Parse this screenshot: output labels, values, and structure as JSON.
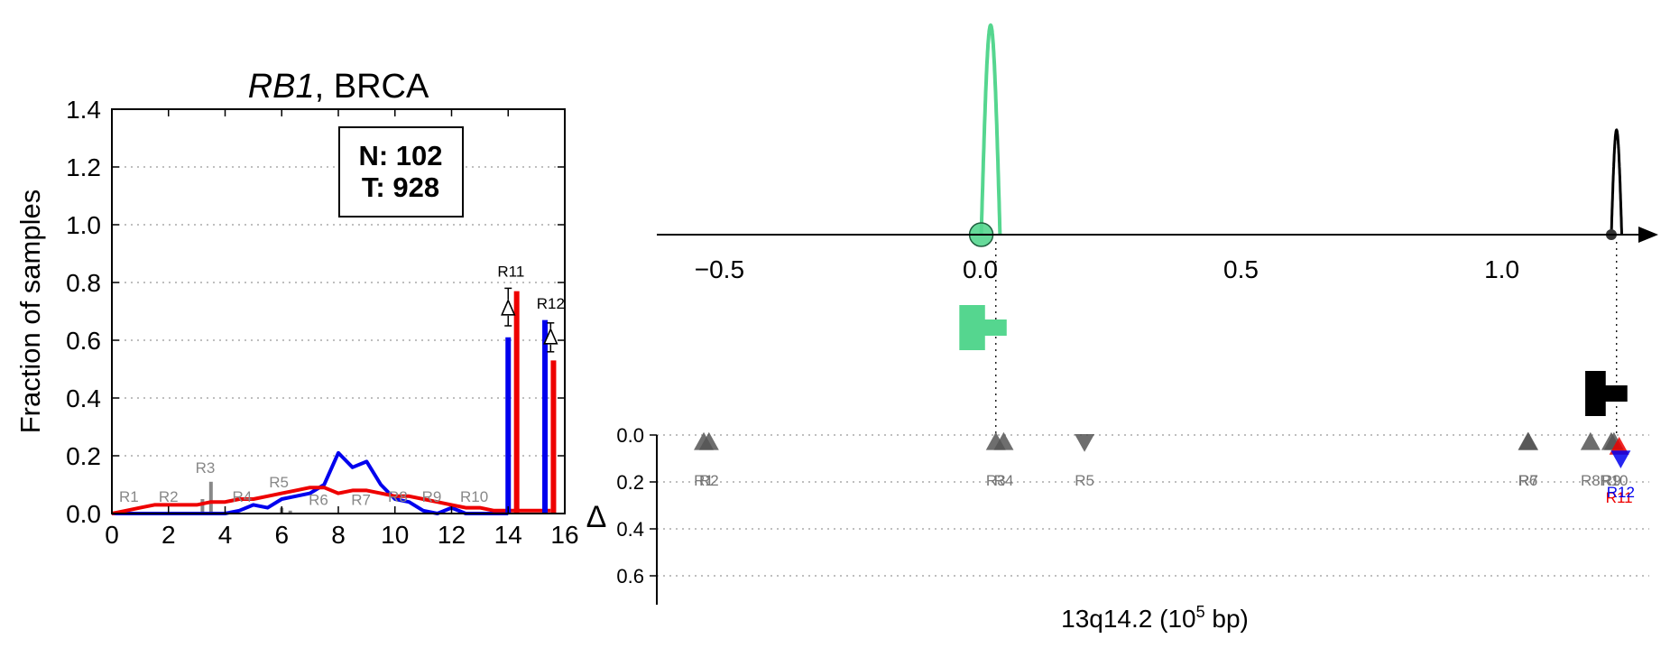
{
  "chart_data": [
    {
      "type": "line",
      "title_gene": "RB1",
      "title_rest": ", BRCA",
      "xlabel": "",
      "ylabel": "Fraction of samples",
      "xlim": [
        0,
        16
      ],
      "ylim": [
        0,
        1.4
      ],
      "x_ticks": [
        "0",
        "2",
        "4",
        "6",
        "8",
        "10",
        "12",
        "14",
        "16"
      ],
      "y_ticks": [
        "0.0",
        "0.2",
        "0.4",
        "0.6",
        "0.8",
        "1.0",
        "1.2",
        "1.4"
      ],
      "grid": "horizontal dotted",
      "counts": {
        "n_label": "N: 102",
        "t_label": "T: 928"
      },
      "series": [
        {
          "color": "#0000ee",
          "x": [
            0,
            1,
            2,
            3,
            4,
            4.5,
            5,
            5.5,
            6,
            6.5,
            7,
            7.5,
            8,
            8.5,
            9,
            9.5,
            10,
            10.5,
            11,
            11.5,
            12,
            12.5,
            13,
            13.5,
            14
          ],
          "values": [
            0,
            0,
            0,
            0,
            0,
            0.01,
            0.03,
            0.02,
            0.05,
            0.06,
            0.07,
            0.1,
            0.21,
            0.16,
            0.18,
            0.1,
            0.05,
            0.04,
            0.01,
            0,
            0.02,
            0,
            0,
            0,
            0
          ]
        },
        {
          "color": "#ee0000",
          "x": [
            0,
            0.5,
            1,
            1.5,
            2,
            2.5,
            3,
            3.5,
            4,
            4.5,
            5,
            5.5,
            6,
            6.5,
            7,
            7.5,
            8,
            8.5,
            9,
            9.5,
            10,
            10.5,
            11,
            11.5,
            12,
            12.5,
            13,
            13.5,
            14,
            14.5,
            15,
            15.5
          ],
          "values": [
            0,
            0.01,
            0.02,
            0.03,
            0.03,
            0.03,
            0.03,
            0.04,
            0.04,
            0.05,
            0.05,
            0.06,
            0.07,
            0.08,
            0.09,
            0.09,
            0.07,
            0.08,
            0.08,
            0.07,
            0.06,
            0.06,
            0.05,
            0.04,
            0.03,
            0.02,
            0.02,
            0.01,
            0.01,
            0.01,
            0.01,
            0.01
          ]
        }
      ],
      "gray_bars": [
        {
          "x": 3.2,
          "value": 0.05
        },
        {
          "x": 3.5,
          "value": 0.11
        },
        {
          "x": 6.0,
          "value": 0.02
        },
        {
          "x": 6.3,
          "value": 0.01
        }
      ],
      "colored_bars": [
        {
          "x": 14.0,
          "value": 0.61,
          "color": "#0000ee"
        },
        {
          "x": 14.3,
          "value": 0.77,
          "color": "#ee0000"
        },
        {
          "x": 15.3,
          "value": 0.67,
          "color": "#0000ee"
        },
        {
          "x": 15.6,
          "value": 0.53,
          "color": "#ee0000"
        }
      ],
      "delta_markers": [
        {
          "x": 14.0,
          "value": 0.71,
          "err": [
            0.65,
            0.78
          ]
        },
        {
          "x": 15.5,
          "value": 0.61,
          "err": [
            0.56,
            0.66
          ]
        }
      ],
      "region_labels": [
        {
          "text": "R1",
          "x": 0.6,
          "y": 0.04,
          "color": "#888888"
        },
        {
          "text": "R2",
          "x": 2.0,
          "y": 0.04,
          "color": "#888888"
        },
        {
          "text": "R3",
          "x": 3.3,
          "y": 0.14,
          "color": "#888888"
        },
        {
          "text": "R4",
          "x": 4.6,
          "y": 0.04,
          "color": "#888888"
        },
        {
          "text": "R5",
          "x": 5.9,
          "y": 0.09,
          "color": "#888888"
        },
        {
          "text": "R6",
          "x": 7.3,
          "y": 0.03,
          "color": "#888888"
        },
        {
          "text": "R7",
          "x": 8.8,
          "y": 0.03,
          "color": "#888888"
        },
        {
          "text": "R8",
          "x": 10.1,
          "y": 0.04,
          "color": "#888888"
        },
        {
          "text": "R9",
          "x": 11.3,
          "y": 0.04,
          "color": "#888888"
        },
        {
          "text": "R10",
          "x": 12.8,
          "y": 0.04,
          "color": "#888888"
        },
        {
          "text": "R11",
          "x": 14.1,
          "y": 0.82,
          "color": "#000000"
        },
        {
          "text": "R12",
          "x": 15.5,
          "y": 0.71,
          "color": "#000000"
        }
      ]
    },
    {
      "type": "scatter",
      "xlabel_pre": "13q14.2 (10",
      "xlabel_sup": "5",
      "xlabel_post": " bp)",
      "ylabel": "Δ",
      "xlim": [
        -0.62,
        1.3
      ],
      "ylim_delta": [
        0,
        0.7
      ],
      "x_ticks": [
        {
          "value": -0.5,
          "label": "−0.5"
        },
        {
          "value": 0.0,
          "label": "0.0"
        },
        {
          "value": 0.5,
          "label": "0.5"
        },
        {
          "value": 1.0,
          "label": "1.0"
        }
      ],
      "y_ticks": [
        "0.0",
        "0.2",
        "0.4",
        "0.6"
      ],
      "grid": "horizontal dotted",
      "peaks": [
        {
          "center": 0.02,
          "height": 1.0,
          "width": 0.018,
          "color": "#55d68f",
          "end_marker": "circle"
        },
        {
          "center": 1.22,
          "height": 0.5,
          "width": 0.01,
          "color": "#000000",
          "end_marker": "dot"
        }
      ],
      "gene_blocks": [
        {
          "start": -0.04,
          "end": 0.03,
          "color": "#55d68f",
          "level": "upper",
          "stem_at": 0.03
        },
        {
          "start": 1.16,
          "end": 1.22,
          "color": "#000000",
          "level": "lower",
          "stem_at": 1.22
        }
      ],
      "markers": [
        {
          "label": "R1",
          "x": -0.53,
          "delta": 0.03,
          "direction": "up",
          "color": "#555555"
        },
        {
          "label": "R2",
          "x": -0.52,
          "delta": 0.03,
          "direction": "up",
          "color": "#555555"
        },
        {
          "label": "R3",
          "x": 0.03,
          "delta": 0.03,
          "direction": "up",
          "color": "#555555"
        },
        {
          "label": "R4",
          "x": 0.045,
          "delta": 0.03,
          "direction": "up",
          "color": "#555555"
        },
        {
          "label": "R5",
          "x": 0.2,
          "delta": 0.03,
          "direction": "down",
          "color": "#555555"
        },
        {
          "label": "R6",
          "x": 1.05,
          "delta": 0.03,
          "direction": "up",
          "color": "#555555"
        },
        {
          "label": "R7",
          "x": 1.051,
          "delta": 0.03,
          "direction": "up",
          "color": "#555555"
        },
        {
          "label": "R8",
          "x": 1.17,
          "delta": 0.03,
          "direction": "up",
          "color": "#555555"
        },
        {
          "label": "R9",
          "x": 1.21,
          "delta": 0.03,
          "direction": "up",
          "color": "#555555"
        },
        {
          "label": "R10",
          "x": 1.215,
          "delta": 0.03,
          "direction": "up",
          "color": "#555555"
        },
        {
          "label": "R11",
          "x": 1.225,
          "delta": 0.05,
          "direction": "up",
          "color": "#ee0000"
        },
        {
          "label": "R12",
          "x": 1.228,
          "delta": 0.1,
          "direction": "down",
          "color": "#0000ee"
        }
      ]
    }
  ]
}
